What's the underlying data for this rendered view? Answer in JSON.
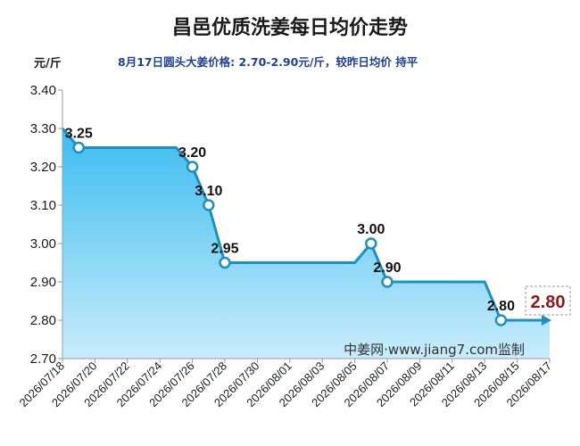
{
  "header": {
    "title": "昌邑优质洗姜每日均价走势",
    "subtitle": "8月17日圆头大姜价格: 2.70-2.90元/斤，较昨日均价 持平",
    "unit": "元/斤"
  },
  "watermark": "中姜网·www.jiang7.com监制",
  "colors": {
    "line": "#1e8fbf",
    "fill_top": "#3cbcf0",
    "fill_bottom": "#c9ecfb",
    "latest": "#8b1a1a"
  },
  "chart_data": {
    "type": "area",
    "title": "昌邑优质洗姜每日均价走势",
    "ylabel": "元/斤",
    "xlabel": "",
    "ylim": [
      2.7,
      3.4
    ],
    "y_ticks": [
      "2.70",
      "2.80",
      "2.90",
      "3.00",
      "3.10",
      "3.20",
      "3.30",
      "3.40"
    ],
    "x_ticks": [
      "2026/07/18",
      "2026/07/20",
      "2026/07/22",
      "2026/07/24",
      "2026/07/26",
      "2026/07/28",
      "2026/07/30",
      "2026/08/01",
      "2026/08/03",
      "2026/08/05",
      "2026/08/07",
      "2026/08/09",
      "2026/08/11",
      "2026/08/13",
      "2026/08/15",
      "2026/08/17"
    ],
    "grid": false,
    "series": [
      {
        "points": [
          {
            "x": "2026/07/18",
            "y": 3.3
          },
          {
            "x": "2026/07/19",
            "y": 3.25,
            "label": "3.25"
          },
          {
            "x": "2026/07/20",
            "y": 3.25
          },
          {
            "x": "2026/07/21",
            "y": 3.25
          },
          {
            "x": "2026/07/22",
            "y": 3.25
          },
          {
            "x": "2026/07/23",
            "y": 3.25
          },
          {
            "x": "2026/07/24",
            "y": 3.25
          },
          {
            "x": "2026/07/25",
            "y": 3.25
          },
          {
            "x": "2026/07/26",
            "y": 3.2,
            "label": "3.20"
          },
          {
            "x": "2026/07/27",
            "y": 3.1,
            "label": "3.10"
          },
          {
            "x": "2026/07/28",
            "y": 2.95,
            "label": "2.95"
          },
          {
            "x": "2026/07/29",
            "y": 2.95
          },
          {
            "x": "2026/07/30",
            "y": 2.95
          },
          {
            "x": "2026/07/31",
            "y": 2.95
          },
          {
            "x": "2026/08/01",
            "y": 2.95
          },
          {
            "x": "2026/08/02",
            "y": 2.95
          },
          {
            "x": "2026/08/03",
            "y": 2.95
          },
          {
            "x": "2026/08/04",
            "y": 2.95
          },
          {
            "x": "2026/08/05",
            "y": 2.95
          },
          {
            "x": "2026/08/06",
            "y": 3.0,
            "label": "3.00"
          },
          {
            "x": "2026/08/07",
            "y": 2.9,
            "label": "2.90"
          },
          {
            "x": "2026/08/08",
            "y": 2.9
          },
          {
            "x": "2026/08/09",
            "y": 2.9
          },
          {
            "x": "2026/08/10",
            "y": 2.9
          },
          {
            "x": "2026/08/11",
            "y": 2.9
          },
          {
            "x": "2026/08/12",
            "y": 2.9
          },
          {
            "x": "2026/08/13",
            "y": 2.9
          },
          {
            "x": "2026/08/14",
            "y": 2.8,
            "label": "2.80"
          },
          {
            "x": "2026/08/15",
            "y": 2.8
          },
          {
            "x": "2026/08/16",
            "y": 2.8
          },
          {
            "x": "2026/08/17",
            "y": 2.8
          }
        ]
      }
    ],
    "latest_value": "2.80"
  }
}
